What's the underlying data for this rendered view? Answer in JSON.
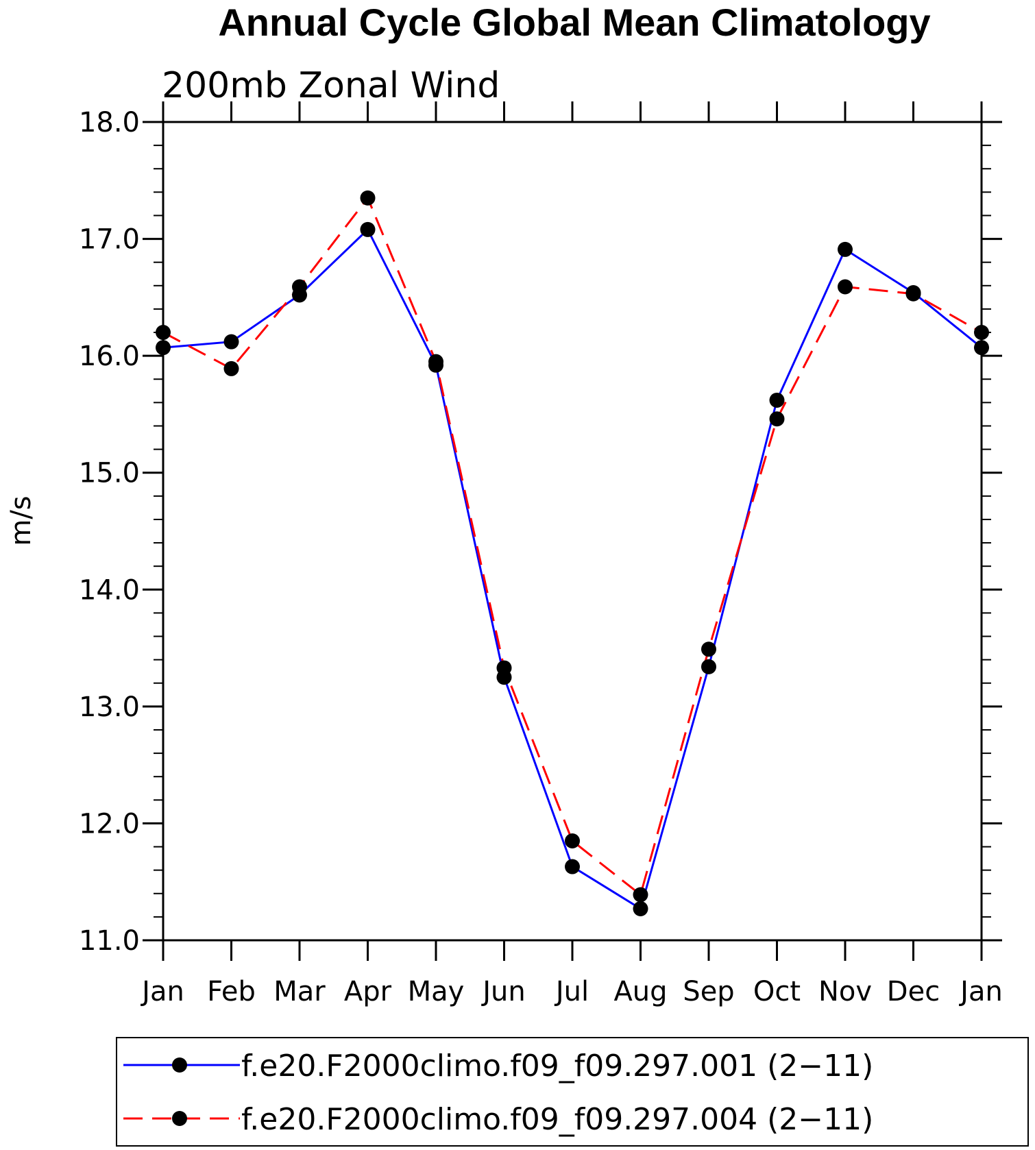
{
  "chart_data": {
    "type": "line",
    "title": "Annual Cycle Global Mean Climatology",
    "subtitle": "200mb Zonal Wind",
    "xlabel": "",
    "ylabel": "m/s",
    "categories": [
      "Jan",
      "Feb",
      "Mar",
      "Apr",
      "May",
      "Jun",
      "Jul",
      "Aug",
      "Sep",
      "Oct",
      "Nov",
      "Dec",
      "Jan"
    ],
    "ylim": [
      11.0,
      18.0
    ],
    "yticks": [
      "11.0",
      "12.0",
      "13.0",
      "14.0",
      "15.0",
      "16.0",
      "17.0",
      "18.0"
    ],
    "grid": false,
    "legend_position": "bottom",
    "series": [
      {
        "name": "f.e20.F2000climo.f09_f09.297.001 (2−11)",
        "color": "#0000ff",
        "dash": "solid",
        "values": [
          16.07,
          16.12,
          16.52,
          17.08,
          15.92,
          13.25,
          11.63,
          11.27,
          13.34,
          15.62,
          16.91,
          16.54,
          16.07
        ]
      },
      {
        "name": "f.e20.F2000climo.f09_f09.297.004 (2−11)",
        "color": "#ff0000",
        "dash": "dashed",
        "values": [
          16.2,
          15.89,
          16.59,
          17.35,
          15.95,
          13.33,
          11.85,
          11.39,
          13.49,
          15.46,
          16.59,
          16.53,
          16.2
        ]
      }
    ]
  }
}
